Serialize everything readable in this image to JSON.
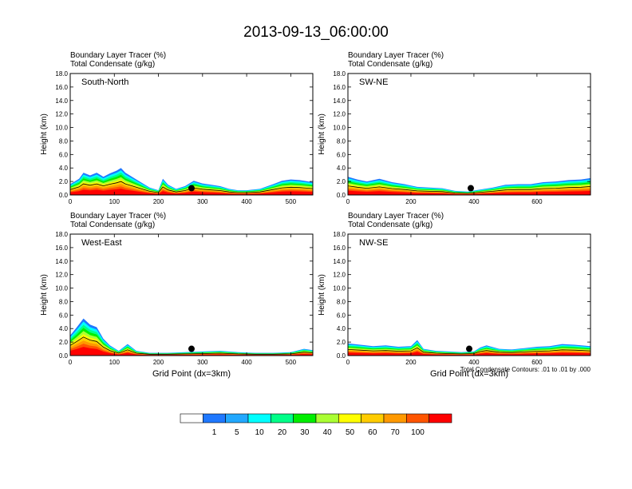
{
  "figure_title": "2013-09-13_06:00:00",
  "chart_data": [
    {
      "type": "heatmap",
      "panel": "South-North",
      "header_lines": [
        "Boundary Layer Tracer   (%)",
        "Total Condensate   (g/kg)"
      ],
      "ylabel": "Height (km)",
      "xlabel": "",
      "xlim": [
        0,
        550
      ],
      "ylim": [
        0,
        18
      ],
      "xticks": [
        "0",
        "100",
        "200",
        "300",
        "400",
        "500"
      ],
      "yticks": [
        "0.0",
        "2.0",
        "4.0",
        "6.0",
        "8.0",
        "10.0",
        "12.0",
        "14.0",
        "16.0",
        "18.0"
      ],
      "tracer_top_km": [
        [
          0,
          1.6
        ],
        [
          20,
          2.4
        ],
        [
          30,
          3.3
        ],
        [
          45,
          2.9
        ],
        [
          60,
          3.3
        ],
        [
          75,
          2.7
        ],
        [
          90,
          3.2
        ],
        [
          105,
          3.6
        ],
        [
          115,
          4.0
        ],
        [
          125,
          3.3
        ],
        [
          140,
          2.7
        ],
        [
          160,
          1.9
        ],
        [
          180,
          1.1
        ],
        [
          200,
          0.7
        ],
        [
          210,
          2.4
        ],
        [
          222,
          1.5
        ],
        [
          240,
          0.9
        ],
        [
          260,
          1.3
        ],
        [
          280,
          2.1
        ],
        [
          300,
          1.7
        ],
        [
          320,
          1.5
        ],
        [
          340,
          1.3
        ],
        [
          360,
          0.9
        ],
        [
          380,
          0.7
        ],
        [
          400,
          0.7
        ],
        [
          430,
          0.9
        ],
        [
          460,
          1.6
        ],
        [
          480,
          2.1
        ],
        [
          500,
          2.3
        ],
        [
          520,
          2.2
        ],
        [
          550,
          1.9
        ]
      ],
      "station_x": 275,
      "station_height_km": 1.0
    },
    {
      "type": "heatmap",
      "panel": "SW-NE",
      "header_lines": [
        "Boundary Layer Tracer   (%)",
        "Total Condensate   (g/kg)"
      ],
      "ylabel": "Height (km)",
      "xlabel": "",
      "xlim": [
        0,
        770
      ],
      "ylim": [
        0,
        18
      ],
      "xticks": [
        "0",
        "200",
        "400",
        "600"
      ],
      "yticks": [
        "0.0",
        "2.0",
        "4.0",
        "6.0",
        "8.0",
        "10.0",
        "12.0",
        "14.0",
        "16.0",
        "18.0"
      ],
      "tracer_top_km": [
        [
          0,
          2.7
        ],
        [
          30,
          2.3
        ],
        [
          60,
          2.0
        ],
        [
          100,
          2.4
        ],
        [
          140,
          1.9
        ],
        [
          180,
          1.6
        ],
        [
          220,
          1.2
        ],
        [
          260,
          1.1
        ],
        [
          300,
          1.0
        ],
        [
          340,
          0.6
        ],
        [
          380,
          0.5
        ],
        [
          420,
          0.8
        ],
        [
          460,
          1.1
        ],
        [
          500,
          1.5
        ],
        [
          540,
          1.6
        ],
        [
          580,
          1.6
        ],
        [
          620,
          1.9
        ],
        [
          660,
          2.0
        ],
        [
          700,
          2.2
        ],
        [
          740,
          2.3
        ],
        [
          770,
          2.5
        ]
      ],
      "station_x": 390,
      "station_height_km": 1.0
    },
    {
      "type": "heatmap",
      "panel": "West-East",
      "header_lines": [
        "Boundary Layer Tracer   (%)",
        "Total Condensate   (g/kg)"
      ],
      "ylabel": "Height (km)",
      "xlabel": "Grid Point (dx=3km)",
      "xlim": [
        0,
        550
      ],
      "ylim": [
        0,
        18
      ],
      "xticks": [
        "0",
        "100",
        "200",
        "300",
        "400",
        "500"
      ],
      "yticks": [
        "0.0",
        "2.0",
        "4.0",
        "6.0",
        "8.0",
        "10.0",
        "12.0",
        "14.0",
        "16.0",
        "18.0"
      ],
      "tracer_top_km": [
        [
          0,
          3.0
        ],
        [
          15,
          4.2
        ],
        [
          30,
          5.5
        ],
        [
          45,
          4.6
        ],
        [
          60,
          4.2
        ],
        [
          75,
          2.5
        ],
        [
          90,
          1.5
        ],
        [
          110,
          0.7
        ],
        [
          130,
          1.7
        ],
        [
          150,
          0.7
        ],
        [
          180,
          0.4
        ],
        [
          220,
          0.4
        ],
        [
          260,
          0.5
        ],
        [
          300,
          0.6
        ],
        [
          340,
          0.7
        ],
        [
          380,
          0.5
        ],
        [
          420,
          0.4
        ],
        [
          460,
          0.4
        ],
        [
          500,
          0.5
        ],
        [
          530,
          1.0
        ],
        [
          550,
          0.8
        ]
      ],
      "station_x": 275,
      "station_height_km": 1.0
    },
    {
      "type": "heatmap",
      "panel": "NW-SE",
      "header_lines": [
        "Boundary Layer Tracer   (%)",
        "Total Condensate   (g/kg)"
      ],
      "ylabel": "Height (km)",
      "xlabel": "Grid Point (dx=3km)",
      "xlim": [
        0,
        770
      ],
      "ylim": [
        0,
        18
      ],
      "xticks": [
        "0",
        "200",
        "400",
        "600"
      ],
      "yticks": [
        "0.0",
        "2.0",
        "4.0",
        "6.0",
        "8.0",
        "10.0",
        "12.0",
        "14.0",
        "16.0",
        "18.0"
      ],
      "tracer_top_km": [
        [
          0,
          1.8
        ],
        [
          40,
          1.6
        ],
        [
          80,
          1.4
        ],
        [
          120,
          1.5
        ],
        [
          160,
          1.3
        ],
        [
          200,
          1.4
        ],
        [
          220,
          2.3
        ],
        [
          240,
          1.0
        ],
        [
          280,
          0.7
        ],
        [
          320,
          0.6
        ],
        [
          360,
          0.5
        ],
        [
          400,
          0.6
        ],
        [
          420,
          1.2
        ],
        [
          440,
          1.5
        ],
        [
          480,
          1.0
        ],
        [
          520,
          0.9
        ],
        [
          560,
          1.1
        ],
        [
          600,
          1.3
        ],
        [
          640,
          1.4
        ],
        [
          680,
          1.7
        ],
        [
          720,
          1.6
        ],
        [
          770,
          1.4
        ]
      ],
      "station_x": 385,
      "station_height_km": 1.0,
      "contour_note": "Total Condensate Contours: .01 to .01 by .000"
    }
  ],
  "colorbar": {
    "labels": [
      "1",
      "5",
      "10",
      "20",
      "30",
      "40",
      "50",
      "60",
      "70",
      "100"
    ],
    "colors": [
      "#ffffff",
      "#1f78ff",
      "#22a8ff",
      "#00ffff",
      "#00ff88",
      "#00ee00",
      "#aaff33",
      "#ffff00",
      "#ffcc00",
      "#ff9900",
      "#ff5500",
      "#ff0000"
    ]
  }
}
